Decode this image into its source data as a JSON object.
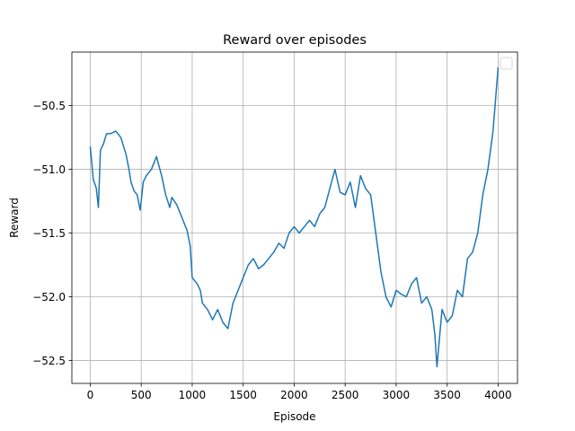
{
  "chart_data": {
    "type": "line",
    "title": "Reward over episodes",
    "xlabel": "Episode",
    "ylabel": "Reward",
    "xlim": [
      -180,
      4190
    ],
    "ylim": [
      -52.68,
      -50.08
    ],
    "xticks": [
      0,
      500,
      1000,
      1500,
      2000,
      2500,
      3000,
      3500,
      4000
    ],
    "yticks": [
      -52.5,
      -52.0,
      -51.5,
      -51.0,
      -50.5
    ],
    "xtick_labels": [
      "0",
      "500",
      "1000",
      "1500",
      "2000",
      "2500",
      "3000",
      "3500",
      "4000"
    ],
    "ytick_labels": [
      "−52.5",
      "−52.0",
      "−51.5",
      "−51.0",
      "−50.5"
    ],
    "grid": true,
    "legend": "upper-right (empty)",
    "colors": {
      "line": "#1f77b4",
      "grid": "#b0b0b0"
    },
    "series": [
      {
        "x": [
          0,
          30,
          60,
          80,
          100,
          130,
          160,
          200,
          250,
          300,
          350,
          380,
          400,
          430,
          460,
          490,
          520,
          550,
          600,
          650,
          700,
          740,
          780,
          800,
          850,
          900,
          950,
          980,
          1000,
          1050,
          1080,
          1100,
          1150,
          1200,
          1250,
          1300,
          1350,
          1400,
          1450,
          1500,
          1550,
          1600,
          1650,
          1700,
          1750,
          1800,
          1850,
          1900,
          1950,
          2000,
          2050,
          2100,
          2150,
          2200,
          2250,
          2300,
          2350,
          2400,
          2450,
          2500,
          2550,
          2600,
          2650,
          2700,
          2750,
          2800,
          2850,
          2900,
          2950,
          3000,
          3050,
          3100,
          3150,
          3200,
          3250,
          3300,
          3350,
          3380,
          3400,
          3450,
          3500,
          3550,
          3600,
          3650,
          3700,
          3750,
          3800,
          3850,
          3900,
          3950,
          4000
        ],
        "y": [
          -50.82,
          -51.08,
          -51.15,
          -51.3,
          -50.85,
          -50.8,
          -50.72,
          -50.72,
          -50.7,
          -50.75,
          -50.88,
          -51.0,
          -51.1,
          -51.17,
          -51.2,
          -51.32,
          -51.1,
          -51.05,
          -51.0,
          -50.9,
          -51.05,
          -51.2,
          -51.3,
          -51.22,
          -51.28,
          -51.38,
          -51.48,
          -51.6,
          -51.85,
          -51.9,
          -51.95,
          -52.05,
          -52.1,
          -52.18,
          -52.1,
          -52.2,
          -52.25,
          -52.05,
          -51.95,
          -51.85,
          -51.75,
          -51.7,
          -51.78,
          -51.75,
          -51.7,
          -51.65,
          -51.58,
          -51.62,
          -51.5,
          -51.45,
          -51.5,
          -51.45,
          -51.4,
          -51.45,
          -51.35,
          -51.3,
          -51.15,
          -51.0,
          -51.18,
          -51.2,
          -51.1,
          -51.3,
          -51.05,
          -51.15,
          -51.2,
          -51.5,
          -51.8,
          -52.0,
          -52.08,
          -51.95,
          -51.98,
          -52.0,
          -51.9,
          -51.85,
          -52.05,
          -52.0,
          -52.1,
          -52.3,
          -52.55,
          -52.1,
          -52.2,
          -52.15,
          -51.95,
          -52.0,
          -51.7,
          -51.65,
          -51.5,
          -51.2,
          -51.0,
          -50.7,
          -50.2
        ]
      }
    ]
  }
}
